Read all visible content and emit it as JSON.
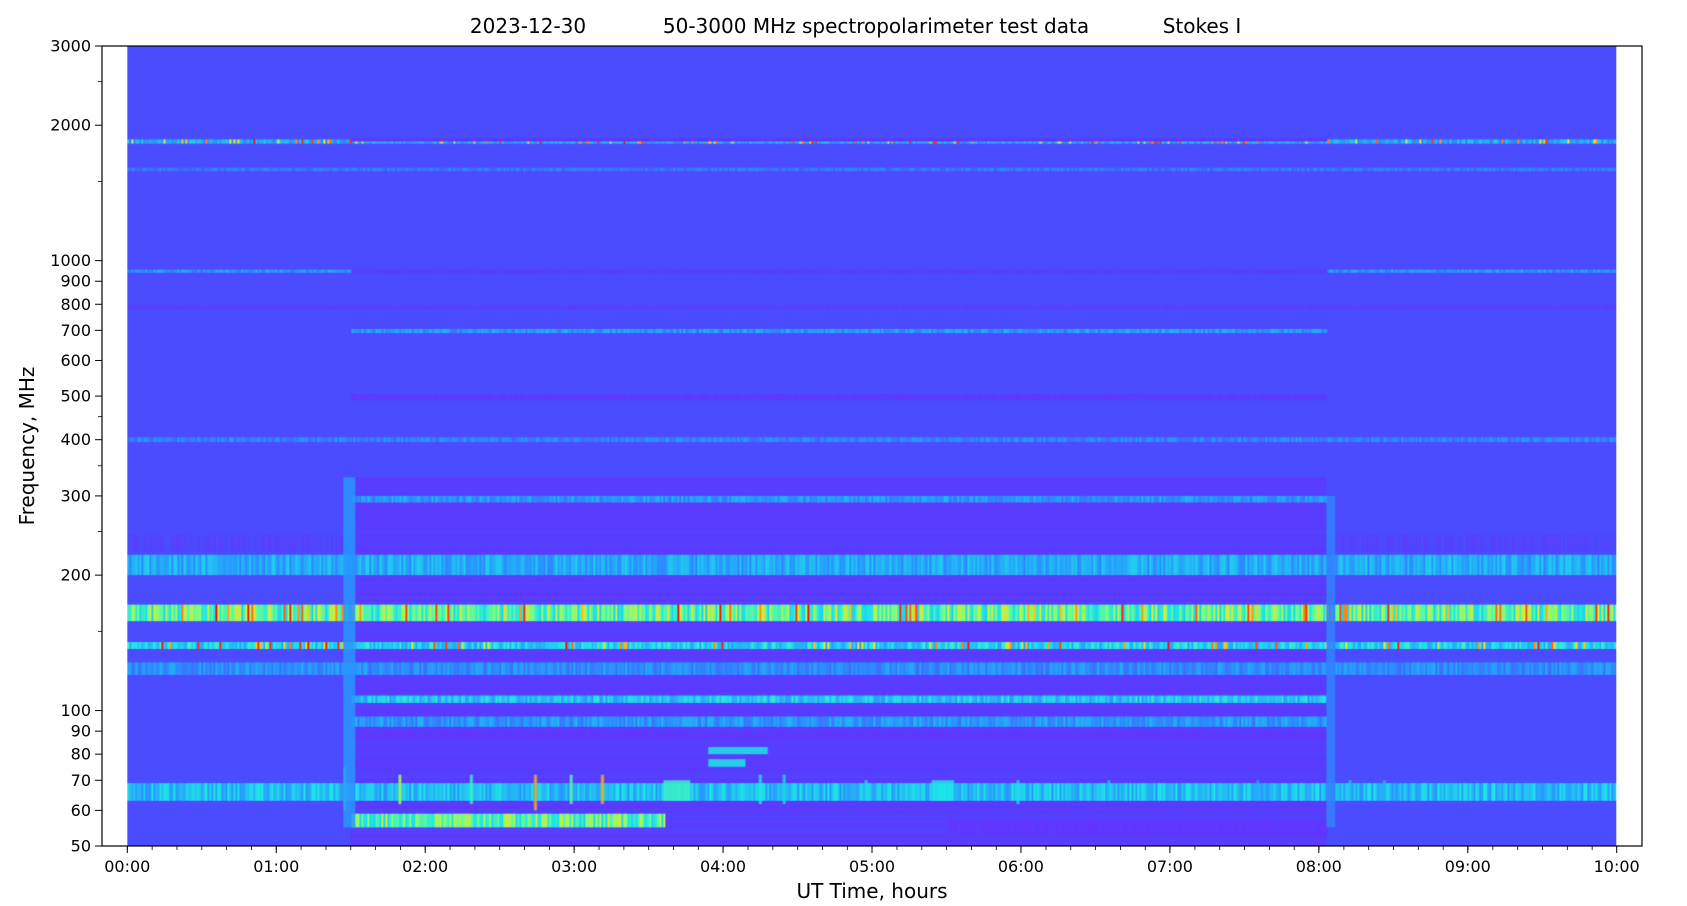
{
  "chart_data": {
    "type": "heatmap",
    "title": {
      "date": "2023-12-30",
      "description": "50-3000 MHz spectropolarimeter test data",
      "stokes": "Stokes I"
    },
    "xlabel": "UT Time, hours",
    "ylabel": "Frequency, MHz",
    "x_unit": "hours",
    "xlim": [
      -0.17,
      10.17
    ],
    "ylim": [
      50,
      3000
    ],
    "y_scale": "log",
    "colormap": "rainbow",
    "x_ticks": [
      {
        "value": 0,
        "label": "00:00"
      },
      {
        "value": 1,
        "label": "01:00"
      },
      {
        "value": 2,
        "label": "02:00"
      },
      {
        "value": 3,
        "label": "03:00"
      },
      {
        "value": 4,
        "label": "04:00"
      },
      {
        "value": 5,
        "label": "05:00"
      },
      {
        "value": 6,
        "label": "06:00"
      },
      {
        "value": 7,
        "label": "07:00"
      },
      {
        "value": 8,
        "label": "08:00"
      },
      {
        "value": 9,
        "label": "09:00"
      },
      {
        "value": 10,
        "label": "10:00"
      }
    ],
    "x_minor_step": 0.1667,
    "y_ticks": [
      {
        "value": 50,
        "label": "50"
      },
      {
        "value": 60,
        "label": "60"
      },
      {
        "value": 70,
        "label": "70"
      },
      {
        "value": 80,
        "label": "80"
      },
      {
        "value": 90,
        "label": "90"
      },
      {
        "value": 100,
        "label": "100"
      },
      {
        "value": 200,
        "label": "200"
      },
      {
        "value": 300,
        "label": "300"
      },
      {
        "value": 400,
        "label": "400"
      },
      {
        "value": 500,
        "label": "500"
      },
      {
        "value": 600,
        "label": "600"
      },
      {
        "value": 700,
        "label": "700"
      },
      {
        "value": 800,
        "label": "800"
      },
      {
        "value": 900,
        "label": "900"
      },
      {
        "value": 1000,
        "label": "1000"
      },
      {
        "value": 2000,
        "label": "2000"
      },
      {
        "value": 3000,
        "label": "3000"
      }
    ],
    "y_minor_ticks": [
      150,
      250,
      350,
      450,
      1500,
      2500
    ],
    "data_time_range": [
      0,
      10
    ],
    "background_color": "#4b4bff",
    "segments": [
      {
        "start": 0.0,
        "end": 1.5,
        "mode": "quiet"
      },
      {
        "start": 1.5,
        "end": 8.05,
        "mode": "active"
      },
      {
        "start": 8.05,
        "end": 10.0,
        "mode": "quiet"
      }
    ],
    "bands": [
      {
        "f_lo": 1820,
        "f_hi": 1860,
        "level": 0.35,
        "mode": "all",
        "speckle": true
      },
      {
        "f_lo": 1580,
        "f_hi": 1610,
        "level": 0.22,
        "mode": "all"
      },
      {
        "f_lo": 1840,
        "f_hi": 1870,
        "level": 0.05,
        "mode": "active"
      },
      {
        "f_lo": 935,
        "f_hi": 955,
        "level": 0.08,
        "mode": "active"
      },
      {
        "f_lo": 940,
        "f_hi": 955,
        "level": 0.3,
        "mode": "quiet"
      },
      {
        "f_lo": 780,
        "f_hi": 795,
        "level": 0.08,
        "mode": "all"
      },
      {
        "f_lo": 690,
        "f_hi": 705,
        "level": 0.3,
        "mode": "active"
      },
      {
        "f_lo": 490,
        "f_hi": 505,
        "level": 0.06,
        "mode": "active"
      },
      {
        "f_lo": 395,
        "f_hi": 405,
        "level": 0.25,
        "mode": "all"
      },
      {
        "f_lo": 290,
        "f_hi": 300,
        "level": 0.3,
        "mode": "active"
      },
      {
        "f_lo": 225,
        "f_hi": 245,
        "level": 0.1,
        "mode": "quiet"
      },
      {
        "f_lo": 200,
        "f_hi": 222,
        "level": 0.35,
        "mode": "all"
      },
      {
        "f_lo": 158,
        "f_hi": 172,
        "level": 0.6,
        "mode": "all",
        "speckle": true
      },
      {
        "f_lo": 137,
        "f_hi": 142,
        "level": 0.45,
        "mode": "all",
        "speckle": true
      },
      {
        "f_lo": 120,
        "f_hi": 128,
        "level": 0.28,
        "mode": "all"
      },
      {
        "f_lo": 104,
        "f_hi": 108,
        "level": 0.42,
        "mode": "active"
      },
      {
        "f_lo": 92,
        "f_hi": 97,
        "level": 0.3,
        "mode": "active"
      },
      {
        "f_lo": 86,
        "f_hi": 90,
        "level": 0.05,
        "mode": "active"
      },
      {
        "f_lo": 63,
        "f_hi": 69,
        "level": 0.4,
        "mode": "all"
      },
      {
        "f_lo": 55,
        "f_hi": 59,
        "level": 0.6,
        "mode": "active",
        "t_end": 3.6
      },
      {
        "f_lo": 53,
        "f_hi": 57,
        "level": 0.05,
        "mode": "active",
        "t_start": 5.5
      }
    ],
    "bursts": [
      {
        "t": 1.45,
        "f_lo": 60,
        "f_hi": 75,
        "level": 0.6
      },
      {
        "t": 1.82,
        "f_lo": 62,
        "f_hi": 72,
        "level": 0.7
      },
      {
        "t": 2.3,
        "f_lo": 62,
        "f_hi": 72,
        "level": 0.55
      },
      {
        "t": 2.73,
        "f_lo": 60,
        "f_hi": 72,
        "level": 0.85
      },
      {
        "t": 2.97,
        "f_lo": 62,
        "f_hi": 72,
        "level": 0.6
      },
      {
        "t": 3.18,
        "f_lo": 62,
        "f_hi": 72,
        "level": 0.85
      },
      {
        "t": 3.6,
        "f_lo": 63,
        "f_hi": 70,
        "level": 0.55,
        "width": 0.18
      },
      {
        "t": 3.9,
        "f_lo": 80,
        "f_hi": 83,
        "level": 0.5,
        "width": 0.4
      },
      {
        "t": 3.9,
        "f_lo": 75,
        "f_hi": 78,
        "level": 0.5,
        "width": 0.25
      },
      {
        "t": 4.24,
        "f_lo": 62,
        "f_hi": 72,
        "level": 0.5
      },
      {
        "t": 4.4,
        "f_lo": 62,
        "f_hi": 72,
        "level": 0.45
      },
      {
        "t": 4.95,
        "f_lo": 63,
        "f_hi": 70,
        "level": 0.45
      },
      {
        "t": 5.4,
        "f_lo": 63,
        "f_hi": 70,
        "level": 0.5,
        "width": 0.15
      },
      {
        "t": 5.97,
        "f_lo": 62,
        "f_hi": 70,
        "level": 0.45
      },
      {
        "t": 6.58,
        "f_lo": 63,
        "f_hi": 70,
        "level": 0.4
      },
      {
        "t": 7.58,
        "f_lo": 63,
        "f_hi": 70,
        "level": 0.35
      },
      {
        "t": 8.2,
        "f_lo": 63,
        "f_hi": 70,
        "level": 0.4
      },
      {
        "t": 8.43,
        "f_lo": 63,
        "f_hi": 70,
        "level": 0.35
      },
      {
        "t": 1.45,
        "f_lo": 55,
        "f_hi": 330,
        "level": 0.3,
        "width": 0.08
      },
      {
        "t": 8.05,
        "f_lo": 55,
        "f_hi": 300,
        "level": 0.25,
        "width": 0.06
      }
    ]
  }
}
